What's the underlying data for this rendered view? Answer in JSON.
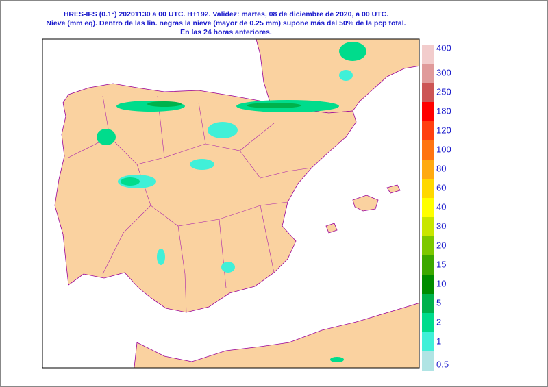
{
  "header": {
    "lines": [
      "HRES-IFS (0.1°) 20201130 a 00 UTC.  H+192. Validez: martes, 08 de diciembre de 2020,  a  00 UTC.",
      "Nieve (mm eq). Dentro de las lin. negras la nieve (mayor de 0.25 mm) supone más del 50% de la pcp total.",
      "En las 24 horas anteriores."
    ]
  },
  "legend": {
    "items": [
      {
        "value": 400,
        "color": "#f2cccc"
      },
      {
        "value": 300,
        "color": "#e09a9a"
      },
      {
        "value": 250,
        "color": "#cc5555"
      },
      {
        "value": 180,
        "color": "#ff0000"
      },
      {
        "value": 120,
        "color": "#ff4010"
      },
      {
        "value": 100,
        "color": "#ff7410"
      },
      {
        "value": 80,
        "color": "#ffaa10"
      },
      {
        "value": 60,
        "color": "#ffd800"
      },
      {
        "value": 40,
        "color": "#ffff00"
      },
      {
        "value": 30,
        "color": "#c8e600"
      },
      {
        "value": 20,
        "color": "#7cc800"
      },
      {
        "value": 15,
        "color": "#3ca800"
      },
      {
        "value": 10,
        "color": "#008c00"
      },
      {
        "value": 5,
        "color": "#00b24c"
      },
      {
        "value": 2,
        "color": "#00dc8c"
      },
      {
        "value": 1,
        "color": "#40f0d8"
      },
      {
        "value": 0.5,
        "color": "#b0e4e4"
      }
    ]
  }
}
